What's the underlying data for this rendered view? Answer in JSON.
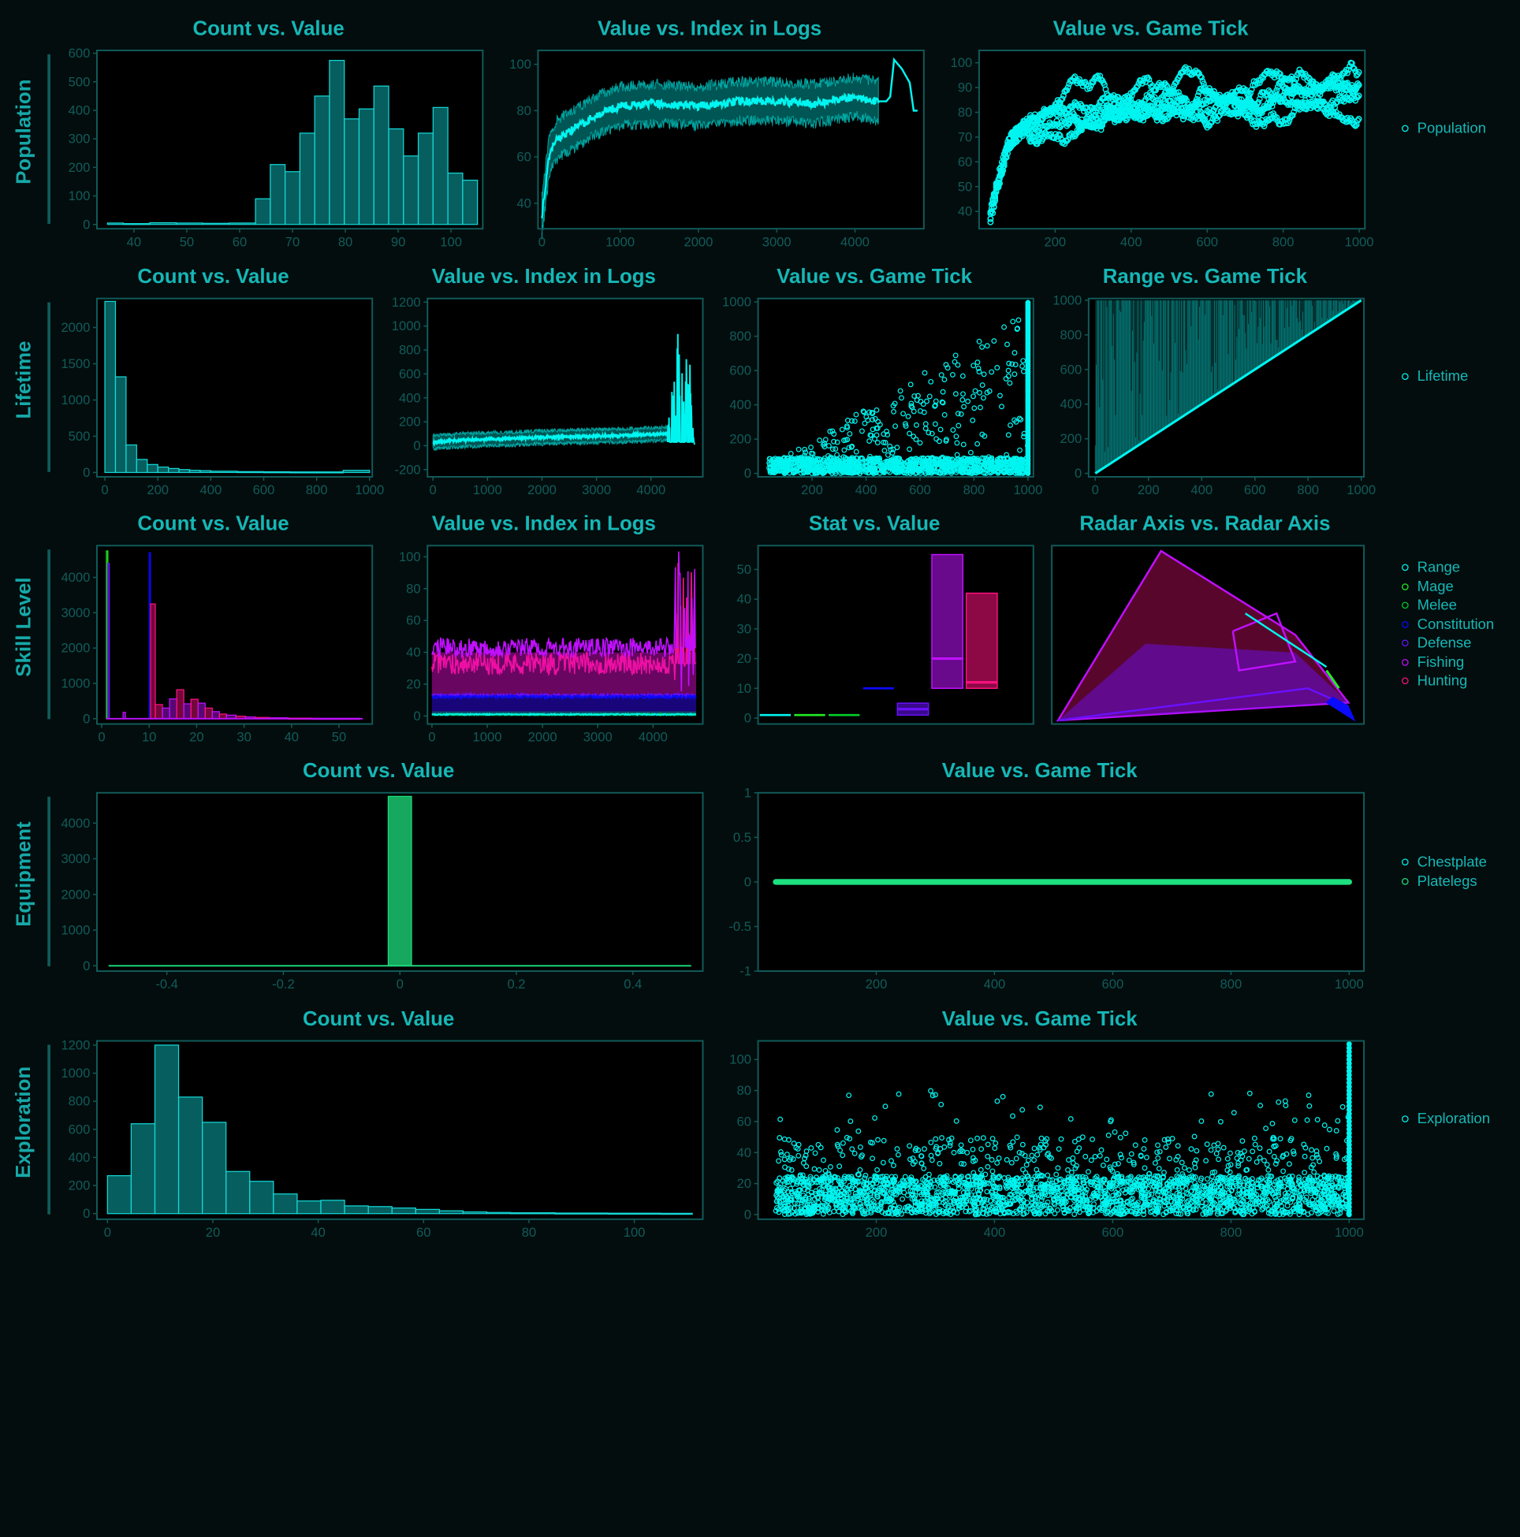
{
  "theme": {
    "page_bg": "#030d0d",
    "frame": "#125b5b",
    "title_color": "#16b7b7",
    "cyan": "#00f5f0",
    "teal_fill": "#0a9898",
    "green": "#1de07f",
    "series_colors": {
      "Range": "#00f5f0",
      "Mage": "#22ee22",
      "Melee": "#00d028",
      "Constitution": "#0a0aff",
      "Defense": "#6a10ff",
      "Fishing": "#c010ff",
      "Hunting": "#ff1080",
      "Population": "#00f5f0",
      "Lifetime": "#00f5f0",
      "Exploration": "#00f5f0",
      "Chestplate": "#00f5f0",
      "Platelegs": "#1de07f"
    }
  },
  "rows": [
    {
      "label": "Population",
      "legend": [
        "Population"
      ]
    },
    {
      "label": "Lifetime",
      "legend": [
        "Lifetime"
      ]
    },
    {
      "label": "Skill Level",
      "legend": [
        "Range",
        "Mage",
        "Melee",
        "Constitution",
        "Defense",
        "Fishing",
        "Hunting"
      ]
    },
    {
      "label": "Equipment",
      "legend": [
        "Chestplate",
        "Platelegs"
      ]
    },
    {
      "label": "Exploration",
      "legend": [
        "Exploration"
      ]
    }
  ],
  "chart_data": [
    {
      "row": "Population",
      "title": "Count vs. Value",
      "type": "bar",
      "x_ticks": [
        40,
        50,
        60,
        70,
        80,
        90,
        100
      ],
      "y_ticks": [
        0,
        100,
        200,
        300,
        400,
        500,
        600
      ],
      "xlim": [
        33,
        106
      ],
      "ylim": [
        -15,
        610
      ],
      "bins": [
        [
          35,
          38,
          5
        ],
        [
          38,
          43,
          3
        ],
        [
          43,
          48,
          6
        ],
        [
          48,
          53,
          5
        ],
        [
          53,
          58,
          4
        ],
        [
          58,
          63,
          5
        ],
        [
          63,
          65.8,
          90
        ],
        [
          65.8,
          68.6,
          210
        ],
        [
          68.6,
          71.4,
          185
        ],
        [
          71.4,
          74.2,
          320
        ],
        [
          74.2,
          77,
          450
        ],
        [
          77,
          79.8,
          575
        ],
        [
          79.8,
          82.6,
          370
        ],
        [
          82.6,
          85.4,
          405
        ],
        [
          85.4,
          88.2,
          485
        ],
        [
          88.2,
          91,
          335
        ],
        [
          91,
          93.8,
          240
        ],
        [
          93.8,
          96.6,
          320
        ],
        [
          96.6,
          99.4,
          410
        ],
        [
          99.4,
          102.2,
          180
        ],
        [
          102.2,
          105,
          155
        ]
      ]
    },
    {
      "row": "Population",
      "title": "Value vs. Index in Logs",
      "type": "line",
      "x_ticks": [
        0,
        1000,
        2000,
        3000,
        4000
      ],
      "y_ticks": [
        40,
        60,
        80,
        100
      ],
      "xlim": [
        -50,
        4880
      ],
      "ylim": [
        29,
        106
      ],
      "series": [
        {
          "name": "Population",
          "x": [
            0,
            100,
            200,
            400,
            700,
            1000,
            1500,
            2000,
            2500,
            3000,
            3500,
            4000,
            4300,
            4400,
            4450,
            4500,
            4600,
            4700,
            4750,
            4800
          ],
          "y": [
            35,
            62,
            68,
            72,
            78,
            82,
            83,
            82,
            84,
            84,
            83,
            86,
            84,
            84,
            86,
            102,
            98,
            92,
            80,
            80
          ],
          "band": 6
        }
      ]
    },
    {
      "row": "Population",
      "title": "Value vs. Game Tick",
      "type": "scatter",
      "x_ticks": [
        200,
        400,
        600,
        800,
        1000
      ],
      "y_ticks": [
        40,
        50,
        60,
        70,
        80,
        90,
        100
      ],
      "xlim": [
        0,
        1015
      ],
      "ylim": [
        33,
        105
      ],
      "series": [
        {
          "name": "Population",
          "x": [
            30,
            50,
            80,
            120,
            160,
            200,
            250,
            300,
            350,
            400,
            450,
            500,
            550,
            600,
            650,
            700,
            750,
            800,
            850,
            900,
            950,
            1000
          ],
          "y": [
            38,
            52,
            68,
            74,
            80,
            84,
            82,
            86,
            84,
            88,
            86,
            84,
            85,
            87,
            84,
            86,
            85,
            88,
            84,
            85,
            86,
            88
          ]
        }
      ]
    },
    {
      "row": "Lifetime",
      "title": "Count vs. Value",
      "type": "bar",
      "x_ticks": [
        0,
        200,
        400,
        600,
        800,
        1000
      ],
      "y_ticks": [
        0,
        500,
        1000,
        1500,
        2000
      ],
      "xlim": [
        -30,
        1010
      ],
      "ylim": [
        -60,
        2400
      ],
      "bins": [
        [
          0,
          40,
          2360
        ],
        [
          40,
          80,
          1320
        ],
        [
          80,
          120,
          380
        ],
        [
          120,
          160,
          180
        ],
        [
          160,
          200,
          110
        ],
        [
          200,
          240,
          75
        ],
        [
          240,
          280,
          55
        ],
        [
          280,
          320,
          40
        ],
        [
          320,
          360,
          30
        ],
        [
          360,
          400,
          25
        ],
        [
          400,
          500,
          18
        ],
        [
          500,
          600,
          12
        ],
        [
          600,
          700,
          10
        ],
        [
          700,
          800,
          8
        ],
        [
          800,
          900,
          8
        ],
        [
          900,
          1000,
          30
        ]
      ]
    },
    {
      "row": "Lifetime",
      "title": "Value vs. Index in Logs",
      "type": "line",
      "x_ticks": [
        0,
        1000,
        2000,
        3000,
        4000
      ],
      "y_ticks": [
        -200,
        0,
        200,
        400,
        600,
        800,
        1000,
        1200
      ],
      "xlim": [
        -100,
        4950
      ],
      "ylim": [
        -260,
        1230
      ],
      "series": [
        {
          "name": "Lifetime",
          "x": [
            0,
            500,
            1000,
            1500,
            2000,
            2500,
            3000,
            3500,
            4000,
            4300,
            4400,
            4500,
            4600,
            4700,
            4800
          ],
          "y": [
            30,
            45,
            55,
            60,
            70,
            75,
            80,
            85,
            95,
            100,
            400,
            700,
            500,
            600,
            10
          ],
          "band": 40
        }
      ]
    },
    {
      "row": "Lifetime",
      "title": "Value vs. Game Tick",
      "type": "scatter",
      "x_ticks": [
        200,
        400,
        600,
        800,
        1000
      ],
      "y_ticks": [
        0,
        200,
        400,
        600,
        800,
        1000
      ],
      "xlim": [
        0,
        1020
      ],
      "ylim": [
        -20,
        1020
      ],
      "series": [
        {
          "name": "Lifetime",
          "x": [
            50,
            150,
            250,
            350,
            450,
            550,
            650,
            750,
            850,
            950,
            1000,
            1000
          ],
          "y": [
            10,
            30,
            60,
            90,
            120,
            160,
            190,
            220,
            260,
            300,
            500,
            1000
          ]
        }
      ]
    },
    {
      "row": "Lifetime",
      "title": "Range vs. Game Tick",
      "type": "area",
      "x_ticks": [
        0,
        200,
        400,
        600,
        800,
        1000
      ],
      "y_ticks": [
        0,
        200,
        400,
        600,
        800,
        1000
      ],
      "xlim": [
        -25,
        1010
      ],
      "ylim": [
        -20,
        1010
      ],
      "series": [
        {
          "name": "Lifetime",
          "x": [
            0,
            1000
          ],
          "lower": [
            0,
            1000
          ],
          "upper": [
            1000,
            1000
          ]
        }
      ]
    },
    {
      "row": "Skill Level",
      "title": "Count vs. Value",
      "type": "bar",
      "x_ticks": [
        0,
        10,
        20,
        30,
        40,
        50
      ],
      "y_ticks": [
        0,
        1000,
        2000,
        3000,
        4000
      ],
      "xlim": [
        -1,
        57
      ],
      "ylim": [
        -150,
        4900
      ],
      "bars": [
        {
          "series": "Mage",
          "x": 1,
          "w": 0.3,
          "value": 4750
        },
        {
          "series": "Defense",
          "x": 1.3,
          "w": 0.3,
          "value": 4400
        },
        {
          "series": "Constitution",
          "x": 10,
          "w": 0.3,
          "value": 4700
        },
        {
          "series": "Hunting",
          "x": 10.3,
          "w": 1,
          "value": 3250
        },
        {
          "series": "Fishing",
          "x": 4.5,
          "w": 0.5,
          "value": 180
        },
        {
          "series": "Hunting",
          "x": 11.3,
          "w": 1.5,
          "value": 400
        },
        {
          "series": "Fishing",
          "x": 12.8,
          "w": 1.5,
          "value": 300
        },
        {
          "series": "Fishing",
          "x": 14.3,
          "w": 1.5,
          "value": 560
        },
        {
          "series": "Hunting",
          "x": 15.8,
          "w": 1.5,
          "value": 820
        },
        {
          "series": "Fishing",
          "x": 17.3,
          "w": 1.5,
          "value": 420
        },
        {
          "series": "Hunting",
          "x": 18.8,
          "w": 1.5,
          "value": 550
        },
        {
          "series": "Fishing",
          "x": 20.3,
          "w": 1.5,
          "value": 440
        },
        {
          "series": "Hunting",
          "x": 21.8,
          "w": 1.5,
          "value": 300
        },
        {
          "series": "Fishing",
          "x": 23.3,
          "w": 1.5,
          "value": 200
        },
        {
          "series": "Hunting",
          "x": 24.8,
          "w": 1.5,
          "value": 130
        },
        {
          "series": "Fishing",
          "x": 26.3,
          "w": 2,
          "value": 100
        },
        {
          "series": "Hunting",
          "x": 28.3,
          "w": 2,
          "value": 70
        },
        {
          "series": "Fishing",
          "x": 30.3,
          "w": 2,
          "value": 50
        },
        {
          "series": "Hunting",
          "x": 32.3,
          "w": 3,
          "value": 35
        },
        {
          "series": "Fishing",
          "x": 35.3,
          "w": 4,
          "value": 25
        },
        {
          "series": "Hunting",
          "x": 39.3,
          "w": 5,
          "value": 15
        },
        {
          "series": "Fishing",
          "x": 44.3,
          "w": 10,
          "value": 10
        }
      ]
    },
    {
      "row": "Skill Level",
      "title": "Value vs. Index in Logs",
      "type": "area",
      "x_ticks": [
        0,
        1000,
        2000,
        3000,
        4000
      ],
      "y_ticks": [
        0,
        20,
        40,
        60,
        80,
        100
      ],
      "xlim": [
        -80,
        4900
      ],
      "ylim": [
        -5,
        107
      ],
      "series": [
        {
          "name": "Hunting",
          "lower": 13,
          "upper": 40,
          "mean": 33,
          "spread": 7
        },
        {
          "name": "Fishing",
          "lower": 13,
          "upper": 40,
          "mean": 43,
          "spread": 6
        },
        {
          "name": "Defense",
          "lower": 1,
          "upper": 14,
          "mean": 13,
          "spread": 1
        },
        {
          "name": "Constitution",
          "lower": 1,
          "upper": 13,
          "mean": 12,
          "spread": 1
        },
        {
          "name": "Melee",
          "lower": 0,
          "upper": 3,
          "mean": 1,
          "spread": 0.5
        },
        {
          "name": "Range",
          "lower": 0,
          "upper": 2,
          "mean": 1,
          "spread": 0.5
        }
      ]
    },
    {
      "row": "Skill Level",
      "title": "Stat vs. Value",
      "type": "bar",
      "x_ticks": [],
      "y_ticks": [
        0,
        10,
        20,
        30,
        40,
        50
      ],
      "xlim": [
        0,
        8
      ],
      "ylim": [
        -2,
        58
      ],
      "categories": [
        "Range",
        "Mage",
        "Melee",
        "Constitution",
        "Defense",
        "Fishing",
        "Hunting"
      ],
      "boxes": [
        {
          "series": "Range",
          "low": 1,
          "high": 1,
          "median": 1
        },
        {
          "series": "Mage",
          "low": 1,
          "high": 1,
          "median": 1
        },
        {
          "series": "Melee",
          "low": 1,
          "high": 1,
          "median": 1
        },
        {
          "series": "Constitution",
          "low": 10,
          "high": 10,
          "median": 10
        },
        {
          "series": "Defense",
          "low": 1,
          "high": 5,
          "median": 3
        },
        {
          "series": "Fishing",
          "low": 10,
          "high": 55,
          "median": 20
        },
        {
          "series": "Hunting",
          "low": 10,
          "high": 42,
          "median": 12
        }
      ]
    },
    {
      "row": "Skill Level",
      "title": "Radar Axis vs. Radar Axis",
      "type": "area",
      "x_ticks": [],
      "y_ticks": [],
      "radar_axes": [
        "Range",
        "Mage",
        "Melee",
        "Constitution",
        "Defense",
        "Fishing",
        "Hunting"
      ],
      "series": [
        {
          "name": "Hunting",
          "values": [
            0.95,
            0.75,
            0.7,
            0.3,
            0.85,
            0.2,
            0.5
          ]
        },
        {
          "name": "Fishing",
          "values": [
            0.6,
            0.5,
            0.45,
            0.2,
            0.55,
            0.15,
            0.35
          ]
        },
        {
          "name": "Defense",
          "values": [
            0.3,
            0.3,
            0.3,
            0.6,
            0.3,
            0.1,
            0.2
          ]
        }
      ]
    },
    {
      "row": "Equipment",
      "title": "Count vs. Value",
      "type": "bar",
      "x_ticks": [
        -0.4,
        -0.2,
        0,
        0.2,
        0.4
      ],
      "y_ticks": [
        0,
        1000,
        2000,
        3000,
        4000
      ],
      "xlim": [
        -0.52,
        0.52
      ],
      "ylim": [
        -150,
        4850
      ],
      "bins": [
        [
          -0.02,
          0.02,
          4750
        ]
      ]
    },
    {
      "row": "Equipment",
      "title": "Value vs. Game Tick",
      "type": "line",
      "x_ticks": [
        200,
        400,
        600,
        800,
        1000
      ],
      "y_ticks": [
        1,
        0.5,
        0,
        -0.5,
        -1
      ],
      "xlim": [
        0,
        1025
      ],
      "ylim": [
        -1,
        1
      ],
      "series": [
        {
          "name": "Platelegs",
          "x": [
            30,
            1000
          ],
          "y": [
            0,
            0
          ]
        }
      ]
    },
    {
      "row": "Exploration",
      "title": "Count vs. Value",
      "type": "bar",
      "x_ticks": [
        0,
        20,
        40,
        60,
        80,
        100
      ],
      "y_ticks": [
        0,
        200,
        400,
        600,
        800,
        1000,
        1200
      ],
      "xlim": [
        -2,
        113
      ],
      "ylim": [
        -40,
        1230
      ],
      "bins": [
        [
          0,
          4.5,
          270
        ],
        [
          4.5,
          9,
          640
        ],
        [
          9,
          13.5,
          1200
        ],
        [
          13.5,
          18,
          830
        ],
        [
          18,
          22.5,
          650
        ],
        [
          22.5,
          27,
          300
        ],
        [
          27,
          31.5,
          230
        ],
        [
          31.5,
          36,
          140
        ],
        [
          36,
          40.5,
          90
        ],
        [
          40.5,
          45,
          95
        ],
        [
          45,
          49.5,
          55
        ],
        [
          49.5,
          54,
          50
        ],
        [
          54,
          58.5,
          40
        ],
        [
          58.5,
          63,
          30
        ],
        [
          63,
          67.5,
          20
        ],
        [
          67.5,
          72,
          12
        ],
        [
          72,
          76.5,
          8
        ],
        [
          76.5,
          85,
          6
        ],
        [
          85,
          95,
          4
        ],
        [
          95,
          105,
          3
        ],
        [
          105,
          111,
          2
        ]
      ]
    },
    {
      "row": "Exploration",
      "title": "Value vs. Game Tick",
      "type": "scatter",
      "x_ticks": [
        200,
        400,
        600,
        800,
        1000
      ],
      "y_ticks": [
        0,
        20,
        40,
        60,
        80,
        100
      ],
      "xlim": [
        0,
        1025
      ],
      "ylim": [
        -3,
        112
      ],
      "series": [
        {
          "name": "Exploration",
          "x": [
            30,
            150,
            300,
            450,
            600,
            750,
            900,
            1000
          ],
          "y": [
            8,
            10,
            12,
            13,
            14,
            14,
            15,
            20
          ]
        }
      ]
    }
  ]
}
